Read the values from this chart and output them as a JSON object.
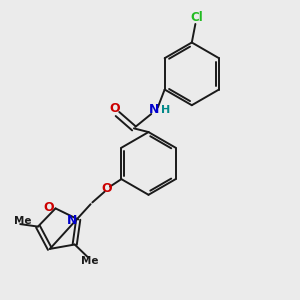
{
  "background_color": "#ebebeb",
  "bond_color": "#1a1a1a",
  "nitrogen_color": "#0000cc",
  "oxygen_color": "#cc0000",
  "chlorine_color": "#22bb22",
  "hydrogen_color": "#008888",
  "figsize": [
    3.0,
    3.0
  ],
  "dpi": 100,
  "xlim": [
    0,
    10
  ],
  "ylim": [
    0,
    10
  ]
}
